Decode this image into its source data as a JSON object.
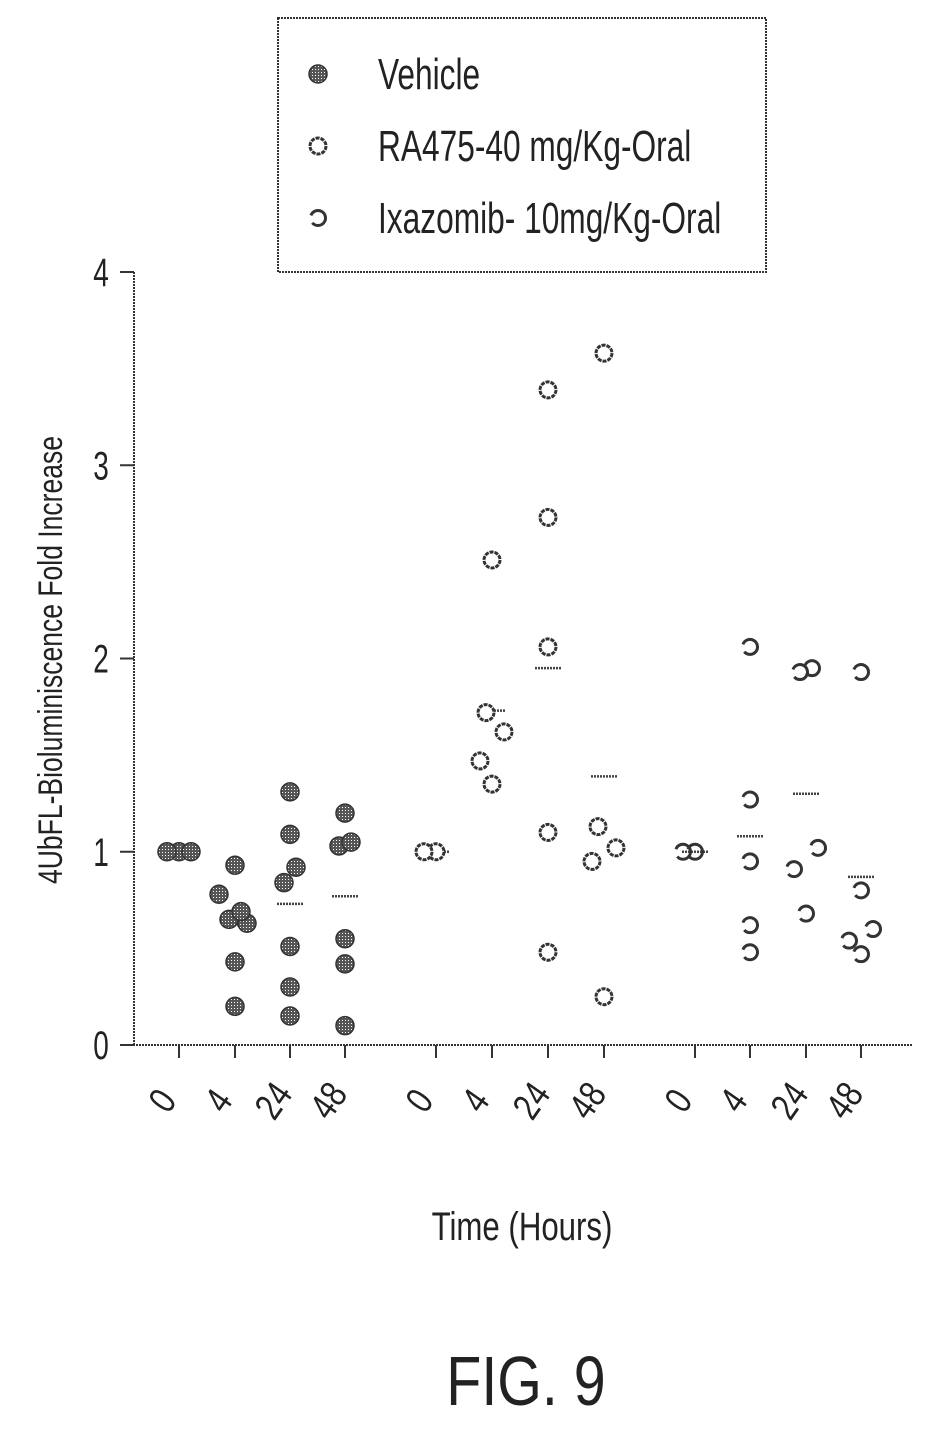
{
  "figure_label": "FIG. 9",
  "chart_data": {
    "type": "scatter",
    "title": "",
    "xlabel": "Time (Hours)",
    "ylabel": "4UbFL-Bioluminiscence Fold Increase",
    "ylim": [
      0,
      4
    ],
    "yticks": [
      "0",
      "1",
      "2",
      "3",
      "4"
    ],
    "grid": false,
    "legend_position": "top",
    "categories": [
      "0",
      "4",
      "24",
      "48",
      "0",
      "4",
      "24",
      "48",
      "0",
      "4",
      "24",
      "48"
    ],
    "series": [
      {
        "name": "Vehicle",
        "marker": "filled",
        "color": "#333333",
        "groups": [
          {
            "time": "0",
            "values": [
              1.0,
              1.0,
              1.0
            ]
          },
          {
            "time": "4",
            "values": [
              0.2,
              0.43,
              0.63,
              0.65,
              0.69,
              0.78,
              0.93
            ]
          },
          {
            "time": "24",
            "values": [
              0.15,
              0.3,
              0.51,
              0.84,
              0.92,
              1.09,
              1.31
            ]
          },
          {
            "time": "48",
            "values": [
              0.1,
              0.42,
              0.55,
              1.03,
              1.05,
              1.2
            ]
          }
        ],
        "means": [
          1.0,
          0.62,
          0.73,
          0.77
        ]
      },
      {
        "name": "RA475-40 mg/Kg-Oral",
        "marker": "open",
        "color": "#333333",
        "groups": [
          {
            "time": "0",
            "values": [
              1.0,
              1.0
            ]
          },
          {
            "time": "4",
            "values": [
              1.35,
              1.47,
              1.62,
              1.72,
              2.51
            ]
          },
          {
            "time": "24",
            "values": [
              0.48,
              1.1,
              2.06,
              2.73,
              3.39
            ]
          },
          {
            "time": "48",
            "values": [
              0.25,
              0.95,
              1.02,
              1.13,
              3.58
            ]
          }
        ],
        "means": [
          1.0,
          1.73,
          1.95,
          1.39
        ]
      },
      {
        "name": "Ixazomib- 10mg/Kg-Oral",
        "marker": "partial",
        "color": "#333333",
        "groups": [
          {
            "time": "0",
            "values": [
              1.0,
              1.0
            ]
          },
          {
            "time": "4",
            "values": [
              0.48,
              0.62,
              0.95,
              1.27,
              2.06
            ]
          },
          {
            "time": "24",
            "values": [
              0.68,
              0.91,
              1.02,
              1.93,
              1.95
            ]
          },
          {
            "time": "48",
            "values": [
              0.47,
              0.54,
              0.6,
              0.8,
              1.93
            ]
          }
        ],
        "means": [
          1.0,
          1.08,
          1.3,
          0.87
        ]
      }
    ]
  }
}
